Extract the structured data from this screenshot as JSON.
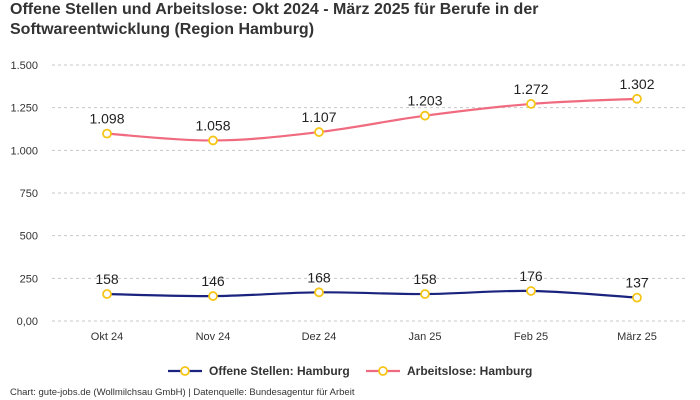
{
  "title": {
    "line1": "Offene Stellen und Arbeitslose: Okt 2024 - März 2025 für Berufe in der",
    "line2": "Softwareentwicklung (Region Hamburg)"
  },
  "source": "Chart: gute-jobs.de (Wollmilchsau GmbH) | Datenquelle: Bundesagentur für Arbeit",
  "colors": {
    "offene": "#1a237e",
    "arbeitslose": "#f06b7f",
    "marker_stroke": "#f5c518",
    "marker_fill": "#ffffff",
    "grid": "#c8c8c8"
  },
  "chart_data": {
    "type": "line",
    "categories": [
      "Okt 24",
      "Nov 24",
      "Dez 24",
      "Jan 25",
      "Feb 25",
      "März 25"
    ],
    "ylim": [
      0,
      1500
    ],
    "yticks": [
      0,
      250,
      500,
      750,
      1000,
      1250,
      1500
    ],
    "ytick_labels": [
      "0,00",
      "250",
      "500",
      "750",
      "1.000",
      "1.250",
      "1.500"
    ],
    "grid": true,
    "legend_position": "bottom-center",
    "series": [
      {
        "name": "Offene Stellen: Hamburg",
        "values": [
          158,
          146,
          168,
          158,
          176,
          137
        ],
        "labels": [
          "158",
          "146",
          "168",
          "158",
          "176",
          "137"
        ]
      },
      {
        "name": "Arbeitslose: Hamburg",
        "values": [
          1098,
          1058,
          1107,
          1203,
          1272,
          1302
        ],
        "labels": [
          "1.098",
          "1.058",
          "1.107",
          "1.203",
          "1.272",
          "1.302"
        ]
      }
    ]
  }
}
